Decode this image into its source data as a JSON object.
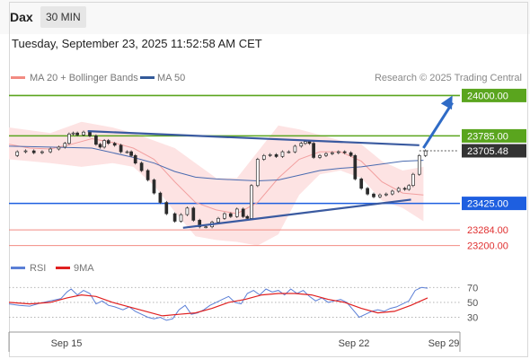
{
  "header": {
    "instrument": "Dax",
    "timeframe": "30 MIN",
    "timestamp": "Tuesday, September 23, 2025 11:52:58 AM CET"
  },
  "legend": {
    "items": [
      {
        "label": "MA 20 + Bollinger Bands",
        "color": "#f28b82"
      },
      {
        "label": "MA 50",
        "color": "#335a99"
      }
    ],
    "credit": "Research © 2025 Trading Central"
  },
  "rsi_legend": {
    "items": [
      {
        "label": "RSI",
        "color": "#5b7fd6"
      },
      {
        "label": "9MA",
        "color": "#e02020"
      }
    ]
  },
  "x_axis": {
    "labels": [
      "Sep 15",
      "Sep 22",
      "Sep 29"
    ]
  },
  "chart_data": [
    {
      "type": "line",
      "name": "price-panel",
      "ylim": [
        23160,
        24050
      ],
      "levels": [
        {
          "value": 24000.0,
          "label": "24000.00",
          "color": "#5aa51e",
          "style": "solid"
        },
        {
          "value": 23785.0,
          "label": "23785.00",
          "color": "#5aa51e",
          "style": "solid"
        },
        {
          "value": 23705.48,
          "label": "23705.48",
          "color": "#333333",
          "style": "current"
        },
        {
          "value": 23425.0,
          "label": "23425.00",
          "color": "#1e5fe0",
          "style": "solid"
        },
        {
          "value": 23284.0,
          "label": "23284.00",
          "color": "#f28b82",
          "style": "thin"
        },
        {
          "value": 23200.0,
          "label": "23200.00",
          "color": "#f28b82",
          "style": "thin"
        }
      ],
      "price_series": [
        [
          0,
          23680
        ],
        [
          4,
          23700
        ],
        [
          8,
          23705
        ],
        [
          12,
          23695
        ],
        [
          16,
          23700
        ],
        [
          20,
          23715
        ],
        [
          24,
          23725
        ],
        [
          27,
          23745
        ],
        [
          29,
          23795
        ],
        [
          31,
          23800
        ],
        [
          33,
          23790
        ],
        [
          36,
          23805
        ],
        [
          39,
          23785
        ],
        [
          42,
          23740
        ],
        [
          44,
          23725
        ],
        [
          46,
          23760
        ],
        [
          48,
          23745
        ],
        [
          51,
          23735
        ],
        [
          54,
          23700
        ],
        [
          57,
          23700
        ],
        [
          59,
          23680
        ],
        [
          61,
          23640
        ],
        [
          64,
          23600
        ],
        [
          67,
          23550
        ],
        [
          70,
          23480
        ],
        [
          73,
          23430
        ],
        [
          76,
          23370
        ],
        [
          80,
          23330
        ],
        [
          83,
          23365
        ],
        [
          86,
          23400
        ],
        [
          89,
          23335
        ],
        [
          92,
          23300
        ],
        [
          95,
          23300
        ],
        [
          98,
          23325
        ],
        [
          101,
          23345
        ],
        [
          104,
          23370
        ],
        [
          107,
          23355
        ],
        [
          110,
          23395
        ],
        [
          113,
          23355
        ],
        [
          115,
          23345
        ],
        [
          117,
          23520
        ],
        [
          120,
          23660
        ],
        [
          123,
          23680
        ],
        [
          126,
          23685
        ],
        [
          129,
          23675
        ],
        [
          132,
          23700
        ],
        [
          135,
          23700
        ],
        [
          138,
          23730
        ],
        [
          141,
          23745
        ],
        [
          143,
          23755
        ],
        [
          145,
          23745
        ],
        [
          147,
          23670
        ],
        [
          150,
          23680
        ],
        [
          153,
          23690
        ],
        [
          156,
          23695
        ],
        [
          159,
          23700
        ],
        [
          162,
          23695
        ],
        [
          165,
          23680
        ],
        [
          167,
          23555
        ],
        [
          170,
          23505
        ],
        [
          173,
          23475
        ],
        [
          176,
          23460
        ],
        [
          179,
          23470
        ],
        [
          182,
          23475
        ],
        [
          185,
          23490
        ],
        [
          188,
          23505
        ],
        [
          191,
          23500
        ],
        [
          193,
          23520
        ],
        [
          195,
          23580
        ],
        [
          198,
          23680
        ],
        [
          201,
          23705
        ]
      ],
      "ma20": [
        [
          0,
          23740
        ],
        [
          10,
          23720
        ],
        [
          20,
          23715
        ],
        [
          30,
          23740
        ],
        [
          40,
          23770
        ],
        [
          50,
          23750
        ],
        [
          60,
          23720
        ],
        [
          70,
          23660
        ],
        [
          80,
          23540
        ],
        [
          90,
          23430
        ],
        [
          100,
          23390
        ],
        [
          110,
          23370
        ],
        [
          120,
          23430
        ],
        [
          130,
          23560
        ],
        [
          140,
          23660
        ],
        [
          150,
          23700
        ],
        [
          160,
          23700
        ],
        [
          170,
          23650
        ],
        [
          180,
          23540
        ],
        [
          190,
          23480
        ],
        [
          200,
          23470
        ]
      ],
      "ma50": [
        [
          0,
          23730
        ],
        [
          20,
          23725
        ],
        [
          40,
          23720
        ],
        [
          60,
          23670
        ],
        [
          70,
          23640
        ],
        [
          80,
          23595
        ],
        [
          90,
          23565
        ],
        [
          100,
          23555
        ],
        [
          110,
          23550
        ],
        [
          120,
          23545
        ],
        [
          130,
          23550
        ],
        [
          140,
          23575
        ],
        [
          150,
          23600
        ],
        [
          160,
          23612
        ],
        [
          170,
          23620
        ],
        [
          180,
          23635
        ],
        [
          190,
          23650
        ],
        [
          200,
          23655
        ]
      ],
      "bb_upper": [
        [
          0,
          23830
        ],
        [
          20,
          23800
        ],
        [
          35,
          23860
        ],
        [
          50,
          23830
        ],
        [
          60,
          23800
        ],
        [
          70,
          23760
        ],
        [
          80,
          23720
        ],
        [
          90,
          23640
        ],
        [
          100,
          23560
        ],
        [
          110,
          23560
        ],
        [
          120,
          23700
        ],
        [
          130,
          23840
        ],
        [
          140,
          23820
        ],
        [
          150,
          23790
        ],
        [
          160,
          23760
        ],
        [
          170,
          23740
        ],
        [
          180,
          23650
        ],
        [
          190,
          23600
        ],
        [
          200,
          23620
        ]
      ],
      "bb_lower": [
        [
          0,
          23660
        ],
        [
          20,
          23640
        ],
        [
          35,
          23620
        ],
        [
          50,
          23640
        ],
        [
          60,
          23620
        ],
        [
          70,
          23520
        ],
        [
          80,
          23380
        ],
        [
          90,
          23250
        ],
        [
          100,
          23230
        ],
        [
          110,
          23220
        ],
        [
          120,
          23200
        ],
        [
          130,
          23260
        ],
        [
          140,
          23470
        ],
        [
          150,
          23580
        ],
        [
          160,
          23600
        ],
        [
          170,
          23560
        ],
        [
          180,
          23440
        ],
        [
          190,
          23400
        ],
        [
          200,
          23330
        ]
      ],
      "trendlines": [
        {
          "from": [
            38,
            23810
          ],
          "to": [
            198,
            23735
          ],
          "color": "#3a5aa0"
        },
        {
          "from": [
            84,
            23295
          ],
          "to": [
            194,
            23445
          ],
          "color": "#3a5aa0"
        }
      ],
      "arrow": {
        "from": [
          200,
          23720
        ],
        "to": [
          214,
          24000
        ],
        "color": "#2f6bc6"
      }
    },
    {
      "type": "line",
      "name": "rsi-panel",
      "ylim": [
        15,
        80
      ],
      "ticks": [
        "70",
        "50",
        "30"
      ],
      "tick_values": [
        70,
        50,
        30
      ],
      "rsi": [
        [
          0,
          48
        ],
        [
          5,
          46
        ],
        [
          10,
          45
        ],
        [
          15,
          49
        ],
        [
          20,
          52
        ],
        [
          25,
          55
        ],
        [
          28,
          64
        ],
        [
          30,
          68
        ],
        [
          33,
          60
        ],
        [
          36,
          66
        ],
        [
          39,
          62
        ],
        [
          42,
          48
        ],
        [
          45,
          52
        ],
        [
          48,
          46
        ],
        [
          51,
          44
        ],
        [
          55,
          40
        ],
        [
          58,
          44
        ],
        [
          61,
          38
        ],
        [
          64,
          34
        ],
        [
          67,
          30
        ],
        [
          70,
          28
        ],
        [
          73,
          30
        ],
        [
          76,
          26
        ],
        [
          79,
          28
        ],
        [
          82,
          40
        ],
        [
          85,
          46
        ],
        [
          88,
          34
        ],
        [
          91,
          36
        ],
        [
          94,
          40
        ],
        [
          97,
          46
        ],
        [
          100,
          50
        ],
        [
          103,
          54
        ],
        [
          106,
          58
        ],
        [
          109,
          50
        ],
        [
          112,
          48
        ],
        [
          115,
          62
        ],
        [
          118,
          66
        ],
        [
          121,
          60
        ],
        [
          124,
          68
        ],
        [
          127,
          64
        ],
        [
          130,
          66
        ],
        [
          133,
          60
        ],
        [
          136,
          68
        ],
        [
          139,
          62
        ],
        [
          142,
          66
        ],
        [
          145,
          58
        ],
        [
          148,
          52
        ],
        [
          151,
          56
        ],
        [
          154,
          50
        ],
        [
          157,
          52
        ],
        [
          160,
          54
        ],
        [
          163,
          50
        ],
        [
          166,
          40
        ],
        [
          169,
          30
        ],
        [
          172,
          34
        ],
        [
          175,
          38
        ],
        [
          178,
          40
        ],
        [
          181,
          38
        ],
        [
          184,
          42
        ],
        [
          187,
          44
        ],
        [
          190,
          48
        ],
        [
          193,
          52
        ],
        [
          196,
          66
        ],
        [
          199,
          70
        ],
        [
          202,
          69
        ]
      ],
      "ma9": [
        [
          0,
          50
        ],
        [
          10,
          48
        ],
        [
          20,
          50
        ],
        [
          28,
          56
        ],
        [
          35,
          60
        ],
        [
          42,
          58
        ],
        [
          50,
          50
        ],
        [
          58,
          44
        ],
        [
          66,
          38
        ],
        [
          74,
          32
        ],
        [
          82,
          34
        ],
        [
          90,
          36
        ],
        [
          98,
          42
        ],
        [
          106,
          50
        ],
        [
          114,
          54
        ],
        [
          122,
          60
        ],
        [
          130,
          62
        ],
        [
          138,
          62
        ],
        [
          146,
          60
        ],
        [
          154,
          54
        ],
        [
          162,
          50
        ],
        [
          170,
          42
        ],
        [
          178,
          36
        ],
        [
          186,
          38
        ],
        [
          194,
          46
        ],
        [
          202,
          56
        ]
      ]
    }
  ]
}
